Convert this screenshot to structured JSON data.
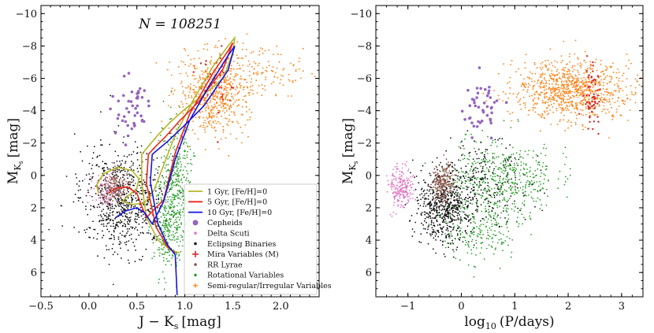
{
  "chart_data": [
    {
      "type": "scatter",
      "panel": "left",
      "xlabel": "J − K",
      "xlabel_sub": "s",
      "xlabel_unit": "[mag]",
      "ylabel": "M",
      "ylabel_sub": "K",
      "ylabel_subsub": "s",
      "ylabel_unit": "[mag]",
      "xlim": [
        -0.5,
        2.4
      ],
      "ylim": [
        7.5,
        -10.5
      ],
      "y_inverted": true,
      "xticks": [
        -0.5,
        0.0,
        0.5,
        1.0,
        1.5,
        2.0
      ],
      "xtick_labels": [
        "−0.5",
        "0.0",
        "0.5",
        "1.0",
        "1.5",
        "2.0"
      ],
      "yticks": [
        -10,
        -8,
        -6,
        -4,
        -2,
        0,
        2,
        4,
        6
      ],
      "ytick_labels": [
        "−10",
        "−8",
        "−6",
        "−4",
        "−2",
        "0",
        "2",
        "4",
        "6"
      ],
      "annotation": "N = 108251",
      "annotation_x": 0.95,
      "annotation_y": -9.1,
      "clouds": [
        {
          "class": "Eclipsing Binaries",
          "cx": 0.35,
          "cy": 1.5,
          "sx": 0.22,
          "sy": 1.6,
          "n": 700
        },
        {
          "class": "Rotational Variables",
          "cx": 0.9,
          "cy": 0.5,
          "sx": 0.09,
          "sy": 1.8,
          "n": 380
        },
        {
          "class": "Rotational Variables",
          "cx": 0.82,
          "cy": 3.5,
          "sx": 0.08,
          "sy": 1.3,
          "n": 200
        },
        {
          "class": "Semi-regular/Irregular Variables",
          "cx": 1.3,
          "cy": -5.0,
          "sx": 0.18,
          "sy": 1.3,
          "n": 550
        },
        {
          "class": "Semi-regular/Irregular Variables",
          "cx": 1.8,
          "cy": -6.3,
          "sx": 0.25,
          "sy": 0.9,
          "n": 130
        },
        {
          "class": "Delta Scuti",
          "cx": 0.18,
          "cy": 0.9,
          "sx": 0.08,
          "sy": 0.5,
          "n": 90
        },
        {
          "class": "RR Lyrae",
          "cx": 0.26,
          "cy": 0.7,
          "sx": 0.08,
          "sy": 0.5,
          "n": 160
        },
        {
          "class": "Cepheids",
          "cx": 0.45,
          "cy": -4.0,
          "sx": 0.1,
          "sy": 1.0,
          "n": 45
        },
        {
          "class": "Mira Variables (M)",
          "cx": 1.3,
          "cy": -6.0,
          "sx": 0.12,
          "sy": 1.1,
          "n": 35
        }
      ],
      "isochrones": [
        {
          "name": "1 Gyr, [Fe/H]=0",
          "color": "#b5b52a",
          "x": [
            0.1,
            0.08,
            0.15,
            0.3,
            0.45,
            0.52,
            0.5,
            0.42,
            0.35,
            0.45,
            0.58,
            0.68,
            0.9,
            1.1,
            1.3,
            1.45,
            1.52,
            1.5,
            1.4,
            1.2,
            1.0,
            0.85,
            0.72,
            0.62,
            0.55,
            0.55,
            0.6,
            0.72,
            0.85,
            0.95
          ],
          "y": [
            1.1,
            0.6,
            -0.1,
            -0.5,
            -0.3,
            0.2,
            0.8,
            1.2,
            1.6,
            1.8,
            1.7,
            0.9,
            -2.5,
            -4.8,
            -6.8,
            -8.0,
            -8.5,
            -7.6,
            -6.0,
            -5.0,
            -4.1,
            -3.3,
            -2.5,
            -1.8,
            -1.3,
            0.5,
            2.6,
            4.0,
            4.6,
            4.8
          ]
        },
        {
          "name": "5 Gyr, [Fe/H]=0",
          "color": "#e8281a",
          "x": [
            0.2,
            0.28,
            0.4,
            0.5,
            0.55,
            0.6,
            0.78,
            0.9,
            1.05,
            1.3,
            1.45,
            1.5,
            1.4,
            1.15,
            0.95,
            0.8,
            0.68,
            0.62,
            0.6,
            0.7,
            0.82,
            0.9
          ],
          "y": [
            1.1,
            0.8,
            0.7,
            1.1,
            1.9,
            2.6,
            1.5,
            -1.4,
            -3.8,
            -6.4,
            -7.7,
            -8.2,
            -6.6,
            -4.6,
            -3.4,
            -2.4,
            -1.7,
            -1.3,
            0.5,
            3.2,
            4.4,
            4.8
          ]
        },
        {
          "name": "10 Gyr, [Fe/H]=0",
          "color": "#1515e0",
          "x": [
            0.28,
            0.38,
            0.5,
            0.58,
            0.66,
            0.78,
            0.9,
            1.05,
            1.25,
            1.45,
            1.52,
            1.45,
            1.2,
            0.98,
            0.82,
            0.72,
            0.66,
            0.64,
            0.72,
            0.82,
            0.9,
            0.92
          ],
          "y": [
            2.6,
            2.2,
            2.0,
            2.3,
            3.0,
            1.6,
            -1.0,
            -3.4,
            -5.5,
            -7.4,
            -8.0,
            -6.5,
            -4.3,
            -3.0,
            -2.1,
            -1.6,
            -1.3,
            0.4,
            3.0,
            4.3,
            4.9,
            7.4
          ]
        }
      ],
      "legend": {
        "placement": "lower-right",
        "entries": [
          {
            "label": "1 Gyr, [Fe/H]=0",
            "kind": "line",
            "color": "#b5b52a"
          },
          {
            "label": "5 Gyr, [Fe/H]=0",
            "kind": "line",
            "color": "#e8281a"
          },
          {
            "label": "10 Gyr, [Fe/H]=0",
            "kind": "line",
            "color": "#1515e0"
          },
          {
            "label": "Cepheids",
            "kind": "dot-large",
            "color": "#9467bd"
          },
          {
            "label": "Delta Scuti",
            "kind": "dot-small",
            "color": "#e377c2"
          },
          {
            "label": "Eclipsing Binaries",
            "kind": "dot-small",
            "color": "#111111"
          },
          {
            "label": "Mira Variables (M)",
            "kind": "plus",
            "color": "#d62728"
          },
          {
            "label": "RR Lyrae",
            "kind": "dot-small",
            "color": "#8c564b"
          },
          {
            "label": "Rotational Variables",
            "kind": "dot-small",
            "color": "#2ca02c"
          },
          {
            "label": "Semi-regular/Irregular Variables",
            "kind": "plus-small",
            "color": "#ff7f0e"
          }
        ]
      }
    },
    {
      "type": "scatter",
      "panel": "right",
      "xlabel": "log",
      "xlabel_sub": "10",
      "xlabel_unit": "(P/days)",
      "ylabel": "M",
      "ylabel_sub": "K",
      "ylabel_subsub": "s",
      "ylabel_unit": "[mag]",
      "xlim": [
        -1.6,
        3.4
      ],
      "ylim": [
        7.5,
        -10.5
      ],
      "y_inverted": true,
      "xticks": [
        -1,
        0,
        1,
        2,
        3
      ],
      "xtick_labels": [
        "−1",
        "0",
        "1",
        "2",
        "3"
      ],
      "yticks": [
        -10,
        -8,
        -6,
        -4,
        -2,
        0,
        2,
        4,
        6
      ],
      "ytick_labels": [
        "−10",
        "−8",
        "−6",
        "−4",
        "−2",
        "0",
        "2",
        "4",
        "6"
      ],
      "clouds": [
        {
          "class": "Rotational Variables",
          "cx": 0.75,
          "cy": 0.3,
          "sx": 0.5,
          "sy": 1.2,
          "n": 500
        },
        {
          "class": "Rotational Variables",
          "cx": 0.4,
          "cy": 3.3,
          "sx": 0.4,
          "sy": 0.9,
          "n": 200
        },
        {
          "class": "Eclipsing Binaries",
          "cx": -0.35,
          "cy": 2.0,
          "sx": 0.25,
          "sy": 1.1,
          "n": 550
        },
        {
          "class": "Eclipsing Binaries",
          "cx": 0.4,
          "cy": 0.5,
          "sx": 0.45,
          "sy": 1.2,
          "n": 250
        },
        {
          "class": "RR Lyrae",
          "cx": -0.35,
          "cy": 0.5,
          "sx": 0.1,
          "sy": 0.6,
          "n": 200
        },
        {
          "class": "Delta Scuti",
          "cx": -1.15,
          "cy": 0.7,
          "sx": 0.12,
          "sy": 0.6,
          "n": 220
        },
        {
          "class": "Semi-regular/Irregular Variables",
          "cx": 2.1,
          "cy": -5.3,
          "sx": 0.55,
          "sy": 0.9,
          "n": 900
        },
        {
          "class": "Mira Variables (M)",
          "cx": 2.45,
          "cy": -5.0,
          "sx": 0.08,
          "sy": 1.0,
          "n": 60
        },
        {
          "class": "Cepheids",
          "cx": 0.4,
          "cy": -4.3,
          "sx": 0.18,
          "sy": 0.8,
          "n": 45
        }
      ]
    }
  ],
  "colors": {
    "cepheids": "#9467bd",
    "delta_scuti": "#e377c2",
    "eclipsing": "#111111",
    "mira": "#d62728",
    "rr_lyrae": "#8c564b",
    "rotational": "#2ca02c",
    "semi_regular": "#ff7f0e"
  }
}
